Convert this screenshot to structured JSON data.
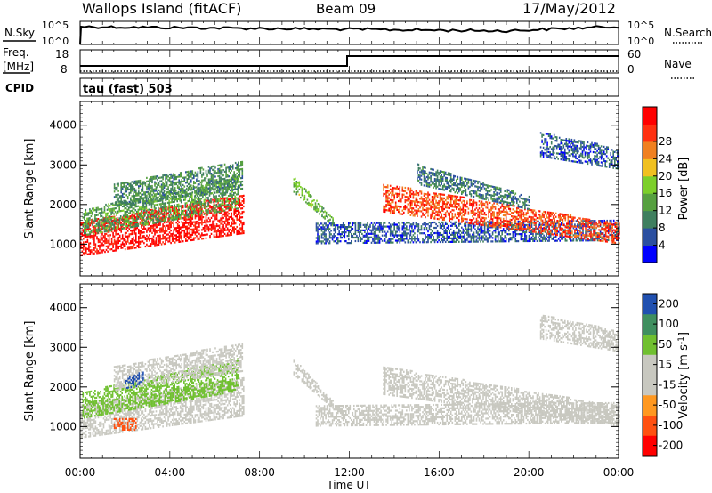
{
  "header": {
    "title": "Wallops Island (fitACF)",
    "beam": "Beam 09",
    "date": "17/May/2012"
  },
  "top_panels": {
    "nsky": {
      "label": "N.Sky",
      "tick_top": "10^5",
      "tick_bottom": "10^0"
    },
    "nsearch": {
      "label": "N.Search",
      "tick_top": "10^5",
      "tick_bottom": "10^0"
    },
    "freq": {
      "label_line1": "Freq.",
      "label_line2": "[MHz]",
      "tick_top": "18",
      "tick_bottom": "8"
    },
    "nave": {
      "label": "Nave",
      "tick_top": "60",
      "tick_bottom": "0"
    },
    "cpid": {
      "label": "CPID",
      "value": "tau (fast) 503"
    }
  },
  "colors": {
    "power": [
      "#0000ff",
      "#2b4fa0",
      "#3f7f5f",
      "#56a040",
      "#7ccf2a",
      "#f0c020",
      "#f08020",
      "#ff3010",
      "#ff0000"
    ],
    "velocity": [
      "#ff0000",
      "#ff5010",
      "#ff9820",
      "#c8c8c0",
      "#c8c8c0",
      "#70c030",
      "#3f8f5f",
      "#2050b0"
    ],
    "ground": "#c8c8c0"
  },
  "chart_data": [
    {
      "type": "heatmap",
      "ylabel": "Slant Range [km]",
      "xlabel": "Time UT",
      "x_ticks": [
        "00:00",
        "04:00",
        "08:00",
        "12:00",
        "16:00",
        "20:00",
        "00:00"
      ],
      "x_range_hours": [
        0,
        24
      ],
      "ylim": [
        200,
        4600
      ],
      "y_ticks": [
        1000,
        2000,
        3000,
        4000
      ],
      "colorbar": {
        "label": "Power [dB]",
        "ticks": [
          "4",
          "8",
          "12",
          "16",
          "20",
          "24",
          "28"
        ],
        "range": [
          0,
          32
        ]
      },
      "bands": [
        {
          "t0": 0.0,
          "t1": 7.3,
          "r0": 700,
          "r1": 1550,
          "r1_end": 2250,
          "value": 30
        },
        {
          "t0": 0.1,
          "t1": 7.0,
          "r0": 1200,
          "r1": 1850,
          "r1_end": 2700,
          "value": 12
        },
        {
          "t0": 1.5,
          "t1": 7.2,
          "r0": 1900,
          "r1": 2500,
          "r1_end": 3100,
          "value": 10
        },
        {
          "t0": 9.5,
          "t1": 11.3,
          "r0": 2300,
          "r1": 2700,
          "r1_end": 1600,
          "value": 14
        },
        {
          "t0": 10.5,
          "t1": 24.0,
          "r0": 1000,
          "r1": 1500,
          "r1_end": 1600,
          "value": 6
        },
        {
          "t0": 13.5,
          "t1": 24.0,
          "r0": 1800,
          "r1": 2500,
          "r1_end": 1500,
          "value": 26
        },
        {
          "t0": 15.0,
          "t1": 20.0,
          "r0": 2500,
          "r1": 3000,
          "r1_end": 2200,
          "value": 8
        },
        {
          "t0": 20.5,
          "t1": 24.0,
          "r0": 3200,
          "r1": 3800,
          "r1_end": 3400,
          "value": 6
        }
      ]
    },
    {
      "type": "heatmap",
      "ylabel": "Slant Range [km]",
      "xlabel": "Time UT",
      "x_ticks": [
        "00:00",
        "04:00",
        "08:00",
        "12:00",
        "16:00",
        "20:00",
        "00:00"
      ],
      "x_range_hours": [
        0,
        24
      ],
      "ylim": [
        200,
        4600
      ],
      "y_ticks": [
        1000,
        2000,
        3000,
        4000
      ],
      "colorbar": {
        "label": "Velocity [m s^-1]",
        "ticks": [
          "200",
          "100",
          "50",
          "15",
          "-15",
          "-50",
          "-100",
          "-200"
        ],
        "range": [
          -250,
          250
        ]
      },
      "bands": [
        {
          "t0": 0.0,
          "t1": 7.3,
          "r0": 700,
          "r1": 1550,
          "r1_end": 2250,
          "value": 0
        },
        {
          "t0": 0.1,
          "t1": 7.0,
          "r0": 1200,
          "r1": 1850,
          "r1_end": 2700,
          "value": 30
        },
        {
          "t0": 1.5,
          "t1": 7.2,
          "r0": 1900,
          "r1": 2500,
          "r1_end": 3100,
          "value": 0
        },
        {
          "t0": 2.0,
          "t1": 2.8,
          "r0": 1950,
          "r1": 2250,
          "r1_end": 2350,
          "value": 220
        },
        {
          "t0": 1.5,
          "t1": 2.5,
          "r0": 900,
          "r1": 1200,
          "r1_end": 1200,
          "value": -80
        },
        {
          "t0": 9.5,
          "t1": 11.3,
          "r0": 2300,
          "r1": 2700,
          "r1_end": 1600,
          "value": 0
        },
        {
          "t0": 10.5,
          "t1": 24.0,
          "r0": 1000,
          "r1": 1500,
          "r1_end": 1600,
          "value": 0
        },
        {
          "t0": 13.5,
          "t1": 24.0,
          "r0": 1800,
          "r1": 2500,
          "r1_end": 1500,
          "value": 0
        },
        {
          "t0": 20.5,
          "t1": 24.0,
          "r0": 3200,
          "r1": 3800,
          "r1_end": 3400,
          "value": 0
        }
      ]
    }
  ]
}
